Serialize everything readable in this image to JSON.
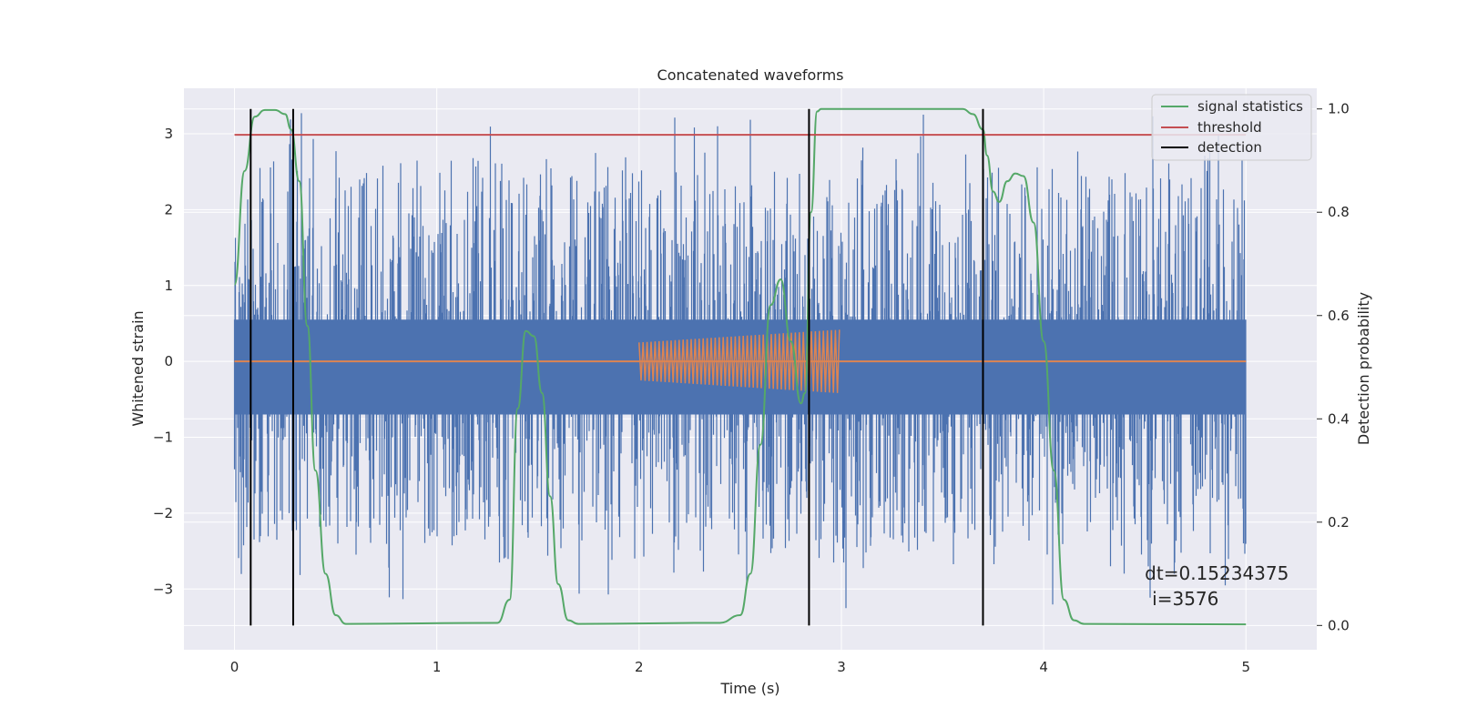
{
  "chart_data": {
    "type": "line",
    "title": "Concatenated waveforms",
    "xlabel": "Time (s)",
    "ylabel": "Whitened strain",
    "y2label": "Detection probability",
    "xlim": [
      -0.25,
      5.35
    ],
    "ylim": [
      -3.8,
      3.6
    ],
    "y2lim": [
      -0.047,
      1.04
    ],
    "xticks": [
      0,
      1,
      2,
      3,
      4,
      5
    ],
    "xtick_labels": [
      "0",
      "1",
      "2",
      "3",
      "4",
      "5"
    ],
    "yticks": [
      -3,
      -2,
      -1,
      0,
      1,
      2,
      3
    ],
    "ytick_labels": [
      "−3",
      "−2",
      "−1",
      "0",
      "1",
      "2",
      "3"
    ],
    "y2ticks": [
      0.0,
      0.2,
      0.4,
      0.6,
      0.8,
      1.0
    ],
    "y2tick_labels": [
      "0.0",
      "0.2",
      "0.4",
      "0.6",
      "0.8",
      "1.0"
    ],
    "grid": true,
    "legend_position": "top-right",
    "colors": {
      "strain": "#4c72b0",
      "injected_signal": "#dd8452",
      "signal_statistics": "#55a868",
      "threshold": "#c44e52",
      "detection": "#000000",
      "axes_background": "#eaeaf2",
      "grid": "#ffffff"
    },
    "strain_noise": {
      "x_range": [
        0,
        5
      ],
      "core_band": [
        -0.7,
        0.55
      ],
      "peak_range": [
        -3.5,
        3.3
      ]
    },
    "injected_chirp": {
      "x_range": [
        2.0,
        3.0
      ],
      "amplitude_start": 0.25,
      "amplitude_end": 0.42
    },
    "threshold": {
      "y": 0.95,
      "x_range": [
        0,
        5
      ]
    },
    "signal_statistics": {
      "x": [
        0,
        0.05,
        0.1,
        0.15,
        0.2,
        0.25,
        0.28,
        0.32,
        0.36,
        0.4,
        0.45,
        0.5,
        0.55,
        1.3,
        1.36,
        1.4,
        1.44,
        1.48,
        1.52,
        1.56,
        1.6,
        1.65,
        1.7,
        2.4,
        2.5,
        2.55,
        2.6,
        2.65,
        2.7,
        2.75,
        2.8,
        2.82,
        2.85,
        2.88,
        2.9,
        3.6,
        3.65,
        3.7,
        3.72,
        3.75,
        3.78,
        3.82,
        3.86,
        3.9,
        3.95,
        4.0,
        4.05,
        4.1,
        4.15,
        4.2,
        5.0
      ],
      "y": [
        0.66,
        0.88,
        0.985,
        0.998,
        0.998,
        0.99,
        0.96,
        0.86,
        0.58,
        0.3,
        0.1,
        0.02,
        0.003,
        0.005,
        0.05,
        0.42,
        0.57,
        0.56,
        0.45,
        0.25,
        0.08,
        0.01,
        0.003,
        0.005,
        0.02,
        0.1,
        0.35,
        0.62,
        0.67,
        0.55,
        0.43,
        0.45,
        0.8,
        0.995,
        1.0,
        1.0,
        0.99,
        0.96,
        0.91,
        0.84,
        0.82,
        0.86,
        0.875,
        0.87,
        0.78,
        0.55,
        0.3,
        0.05,
        0.01,
        0.003,
        0.002
      ]
    },
    "detections": [
      0.08,
      0.29,
      2.84,
      3.7
    ],
    "legend": [
      {
        "label": "signal statistics",
        "color": "#55a868"
      },
      {
        "label": "threshold",
        "color": "#c44e52"
      },
      {
        "label": "detection",
        "color": "#000000"
      }
    ],
    "annotation": {
      "line1": "dt=0.15234375",
      "line2": "i=3576",
      "x": 4.5,
      "y": 0.085
    }
  }
}
